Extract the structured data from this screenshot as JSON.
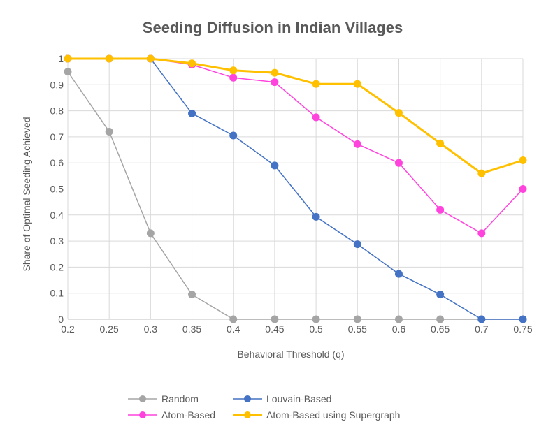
{
  "chart_data": {
    "type": "line",
    "title": "Seeding Diffusion in Indian Villages",
    "xlabel": "Behavioral Threshold (q)",
    "ylabel": "Share of Optimal Seeding Achieved",
    "x": [
      0.2,
      0.25,
      0.3,
      0.35,
      0.4,
      0.45,
      0.5,
      0.55,
      0.6,
      0.65,
      0.7,
      0.75
    ],
    "xtick_labels": [
      "0.2",
      "0.25",
      "0.3",
      "0.35",
      "0.4",
      "0.45",
      "0.5",
      "0.55",
      "0.6",
      "0.65",
      "0.7",
      "0.75"
    ],
    "ylim": [
      0,
      1
    ],
    "yticks": [
      0,
      0.1,
      0.2,
      0.3,
      0.4,
      0.5,
      0.6,
      0.7,
      0.8,
      0.9,
      1
    ],
    "ytick_labels": [
      "0",
      "0.1",
      "0.2",
      "0.3",
      "0.4",
      "0.5",
      "0.6",
      "0.7",
      "0.8",
      "0.9",
      "1"
    ],
    "grid": true,
    "legend_position": "bottom",
    "series": [
      {
        "name": "Random",
        "color": "#a5a5a5",
        "stroke": 1.5,
        "values": [
          0.95,
          0.72,
          0.33,
          0.095,
          0,
          0,
          0,
          0,
          0,
          0,
          0,
          0
        ]
      },
      {
        "name": "Louvain-Based",
        "color": "#4472c4",
        "stroke": 1.5,
        "values": [
          1,
          1,
          1,
          0.79,
          0.705,
          0.59,
          0.393,
          0.288,
          0.174,
          0.095,
          0,
          0
        ]
      },
      {
        "name": "Atom-Based",
        "color": "#ff44dd",
        "stroke": 1.5,
        "values": [
          1,
          1,
          1,
          0.977,
          0.927,
          0.91,
          0.775,
          0.672,
          0.6,
          0.42,
          0.33,
          0.5
        ]
      },
      {
        "name": "Atom-Based using Supergraph",
        "color": "#ffc000",
        "stroke": 3,
        "values": [
          1,
          1,
          1,
          0.982,
          0.955,
          0.946,
          0.903,
          0.903,
          0.792,
          0.675,
          0.56,
          0.61
        ]
      }
    ]
  }
}
